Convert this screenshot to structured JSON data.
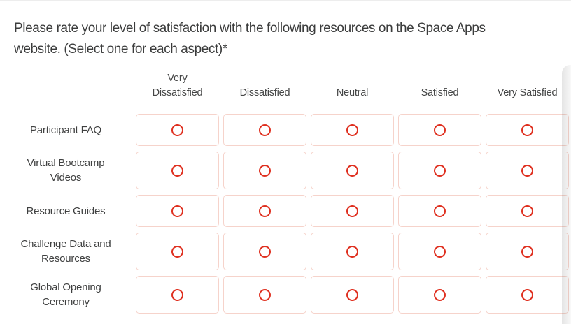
{
  "question": {
    "text": "Please rate your level of satisfaction with the following resources on the Space Apps website. (Select one for each aspect)*",
    "text_lines": [
      "Please rate your level of satisfaction with the following resources on the Space Apps",
      "website. (Select one for each aspect)"
    ],
    "required_marker": "*"
  },
  "matrix": {
    "columns": [
      "Very Dissatisfied",
      "Dissatisfied",
      "Neutral",
      "Satisfied",
      "Very Satisfied"
    ],
    "rows": [
      "Participant FAQ",
      "Virtual Bootcamp Videos",
      "Resource Guides",
      "Challenge Data and Resources",
      "Global Opening Ceremony"
    ],
    "selection_state": "none-selected"
  },
  "colors": {
    "radio_ring": "#df2f1f",
    "cell_border": "#f6d3cb",
    "text": "#3d3e3e"
  }
}
